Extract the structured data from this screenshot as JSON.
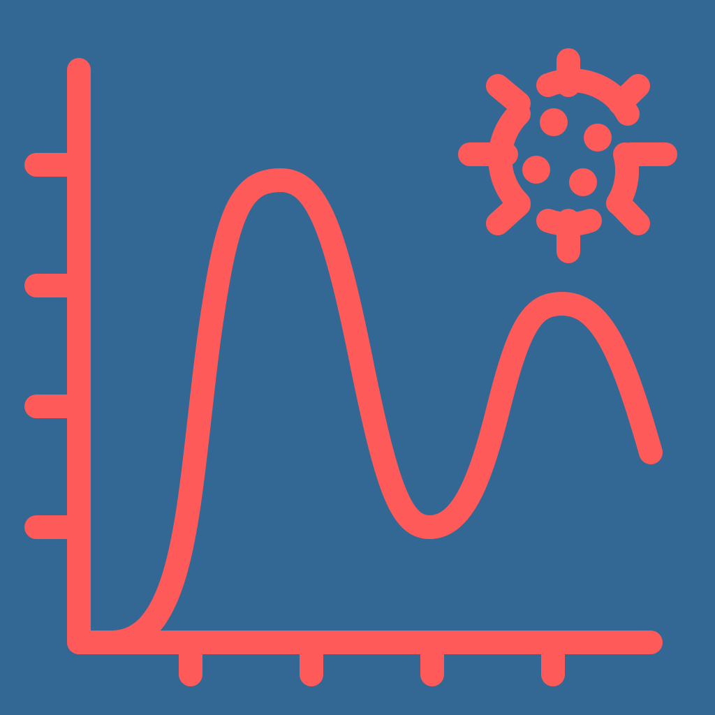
{
  "icon": {
    "name": "virus-infection-curve-icon",
    "background_color": "#326893",
    "stroke_color": "#FF5A5A",
    "elements": [
      "y-axis",
      "x-axis",
      "y-axis-ticks",
      "x-axis-ticks",
      "infection-wave-curve",
      "virus-icon"
    ]
  }
}
